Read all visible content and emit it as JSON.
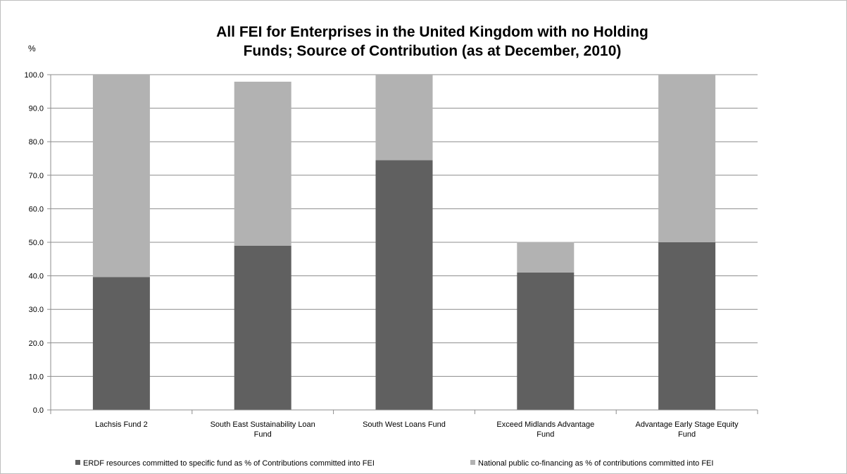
{
  "chart_data": {
    "type": "bar",
    "stacked": true,
    "title_lines": [
      "All FEI for Enterprises in the United Kingdom with no Holding",
      "Funds; Source of Contribution (as at December, 2010)"
    ],
    "ylabel": "%",
    "xlabel": "",
    "ylim": [
      0,
      100
    ],
    "yticks": [
      "0.0",
      "10.0",
      "20.0",
      "30.0",
      "40.0",
      "50.0",
      "60.0",
      "70.0",
      "80.0",
      "90.0",
      "100.0"
    ],
    "grid": true,
    "legend_position": "bottom",
    "categories": [
      [
        "Lachsis Fund 2"
      ],
      [
        "South East Sustainability  Loan",
        "Fund"
      ],
      [
        "South West Loans Fund"
      ],
      [
        "Exceed Midlands Advantage",
        "Fund"
      ],
      [
        "Advantage Early Stage Equity",
        "Fund"
      ]
    ],
    "series": [
      {
        "name": "ERDF resources committed to specific fund as % of Contributions committed into FEI",
        "color": "#606060",
        "values": [
          39.6,
          49.0,
          74.5,
          41.0,
          50.0
        ]
      },
      {
        "name": "National public co-financing as % of contributions committed  into FEI",
        "color": "#b2b2b2",
        "values": [
          60.4,
          48.9,
          25.5,
          9.1,
          50.0
        ]
      }
    ]
  }
}
